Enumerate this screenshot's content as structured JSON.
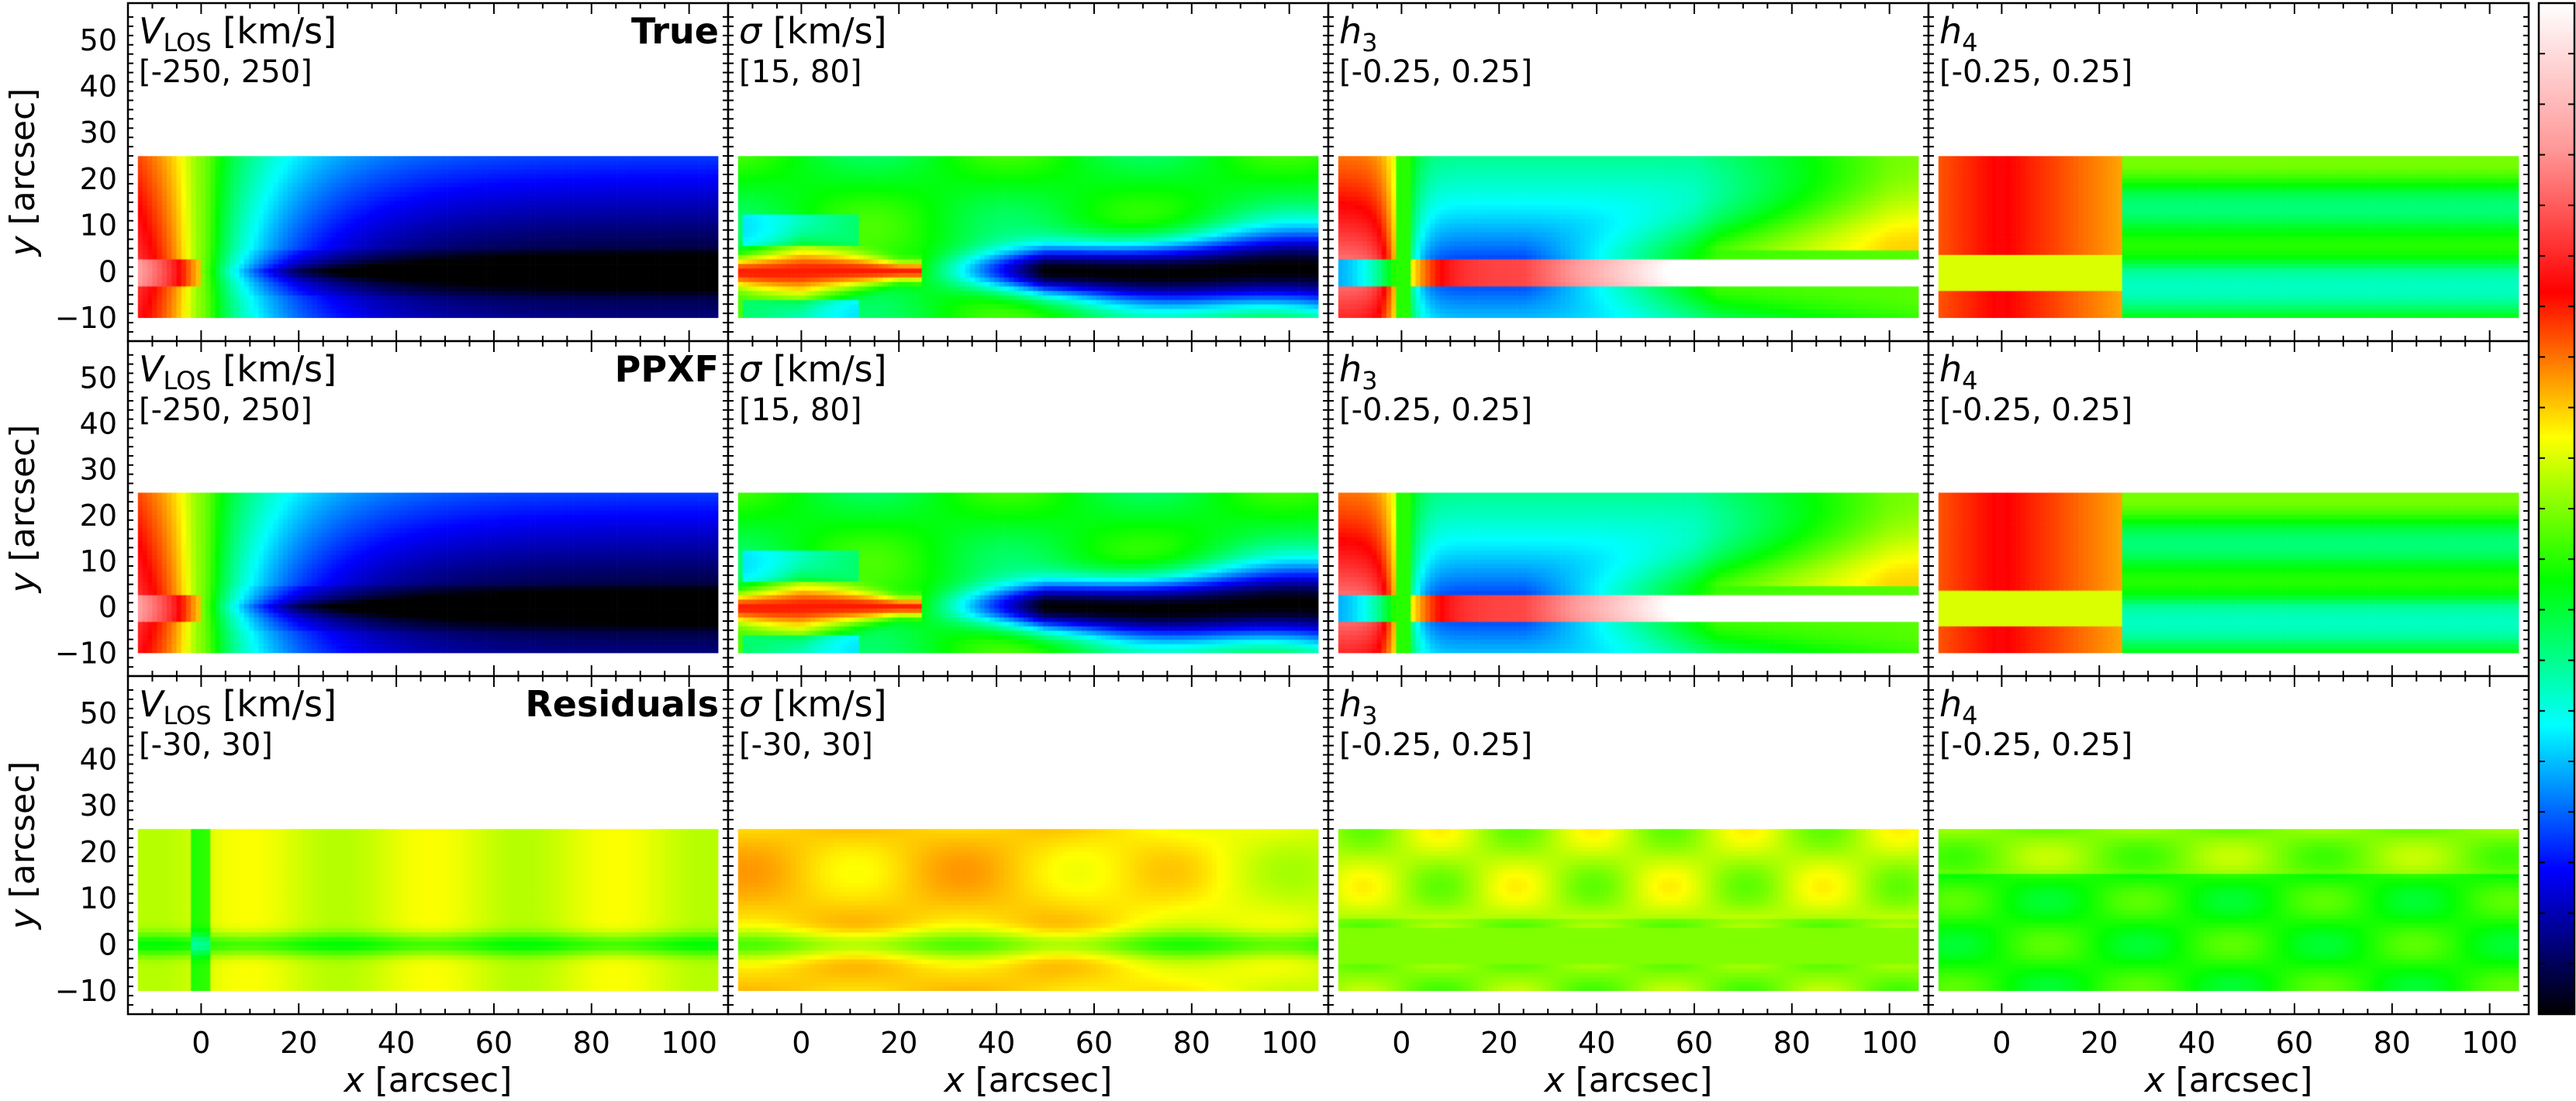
{
  "chart_data": {
    "type": "heatmap",
    "layout": {
      "rows": 3,
      "cols": 4
    },
    "x_axis": {
      "label": "x [arcsec]",
      "range": [
        -15,
        108
      ],
      "ticks": [
        0,
        20,
        40,
        60,
        80,
        100
      ]
    },
    "y_axis": {
      "label": "y [arcsec]",
      "range": [
        -15,
        58
      ],
      "ticks": [
        -10,
        0,
        10,
        20,
        30,
        40,
        50
      ]
    },
    "rows": [
      {
        "label": "True"
      },
      {
        "label": "PPXF"
      },
      {
        "label": "Residuals"
      }
    ],
    "panels": [
      {
        "row": 0,
        "col": 0,
        "quantity": "vlos",
        "title_main": "V",
        "title_sub": "LOS",
        "title_unit": "[km/s]",
        "range_text": "[-250, 250]",
        "vmin": -250,
        "vmax": 250
      },
      {
        "row": 0,
        "col": 1,
        "quantity": "sigma",
        "title_main": "σ",
        "title_sub": "",
        "title_unit": "[km/s]",
        "range_text": "[15, 80]",
        "vmin": 15,
        "vmax": 80
      },
      {
        "row": 0,
        "col": 2,
        "quantity": "h3",
        "title_main": "h",
        "title_sub": "3",
        "title_unit": "",
        "range_text": "[-0.25, 0.25]",
        "vmin": -0.25,
        "vmax": 0.25
      },
      {
        "row": 0,
        "col": 3,
        "quantity": "h4",
        "title_main": "h",
        "title_sub": "4",
        "title_unit": "",
        "range_text": "[-0.25, 0.25]",
        "vmin": -0.25,
        "vmax": 0.25
      },
      {
        "row": 1,
        "col": 0,
        "quantity": "vlos",
        "title_main": "V",
        "title_sub": "LOS",
        "title_unit": "[km/s]",
        "range_text": "[-250, 250]",
        "vmin": -250,
        "vmax": 250
      },
      {
        "row": 1,
        "col": 1,
        "quantity": "sigma",
        "title_main": "σ",
        "title_sub": "",
        "title_unit": "[km/s]",
        "range_text": "[15, 80]",
        "vmin": 15,
        "vmax": 80
      },
      {
        "row": 1,
        "col": 2,
        "quantity": "h3",
        "title_main": "h",
        "title_sub": "3",
        "title_unit": "",
        "range_text": "[-0.25, 0.25]",
        "vmin": -0.25,
        "vmax": 0.25
      },
      {
        "row": 1,
        "col": 3,
        "quantity": "h4",
        "title_main": "h",
        "title_sub": "4",
        "title_unit": "",
        "range_text": "[-0.25, 0.25]",
        "vmin": -0.25,
        "vmax": 0.25
      },
      {
        "row": 2,
        "col": 0,
        "quantity": "vlos_res",
        "title_main": "V",
        "title_sub": "LOS",
        "title_unit": "[km/s]",
        "range_text": "[-30, 30]",
        "vmin": -30,
        "vmax": 30
      },
      {
        "row": 2,
        "col": 1,
        "quantity": "sigma_res",
        "title_main": "σ",
        "title_sub": "",
        "title_unit": "[km/s]",
        "range_text": "[-30, 30]",
        "vmin": -30,
        "vmax": 30
      },
      {
        "row": 2,
        "col": 2,
        "quantity": "h3_res",
        "title_main": "h",
        "title_sub": "3",
        "title_unit": "",
        "range_text": "[-0.25, 0.25]",
        "vmin": -0.25,
        "vmax": 0.25
      },
      {
        "row": 2,
        "col": 3,
        "quantity": "h4_res",
        "title_main": "h",
        "title_sub": "4",
        "title_unit": "",
        "range_text": "[-0.25, 0.25]",
        "vmin": -0.25,
        "vmax": 0.25
      }
    ],
    "data_extent": {
      "x": [
        -13,
        106
      ],
      "y": [
        -10,
        25
      ]
    },
    "colormap": {
      "name": "rainbow (black-blue-cyan-green-yellow-red-pink-white)",
      "stops": [
        "#000000",
        "#0000ff",
        "#00ffff",
        "#00ff00",
        "#ffff00",
        "#ff0000",
        "#ff9999",
        "#ffffff"
      ]
    },
    "colorbar": {
      "position": "right",
      "tick_labels": false
    }
  }
}
